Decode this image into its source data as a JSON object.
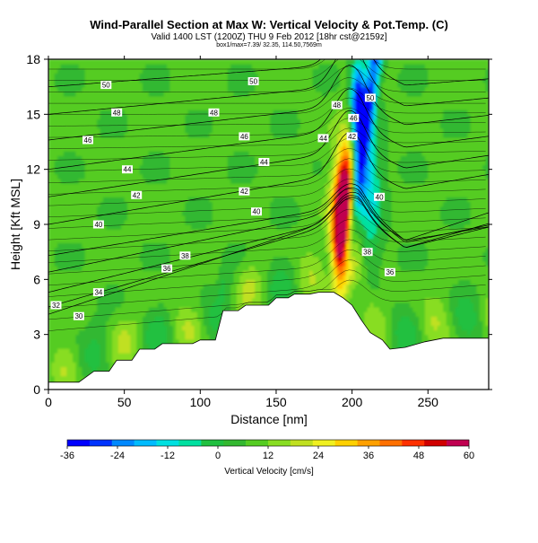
{
  "titles": {
    "main": "Wind-Parallel Section at Max W: Vertical Velocity & Pot.Temp. (C)",
    "valid": "Valid 1400 LST (1200Z) THU 9 Feb 2012 [18hr cst@2159z]",
    "sub": "box1/max=7.39/ 32.35, 114.50,7569m"
  },
  "chart_data": {
    "type": "heatmap",
    "xlabel": "Distance [nm]",
    "ylabel": "Height [Kft MSL]",
    "xlim": [
      0,
      290
    ],
    "ylim": [
      0,
      18
    ],
    "x_ticks": [
      0,
      50,
      100,
      150,
      200,
      250
    ],
    "y_ticks": [
      0,
      3,
      6,
      9,
      12,
      15,
      18
    ],
    "colorbar": {
      "label": "Vertical Velocity [cm/s]",
      "ticks": [
        -36,
        -24,
        -12,
        0,
        12,
        24,
        36,
        48,
        60
      ],
      "range": [
        -36,
        60
      ],
      "colors": [
        "#0000ff",
        "#0033ff",
        "#0088ff",
        "#00bbff",
        "#00e0e0",
        "#00e0a0",
        "#20c040",
        "#33b830",
        "#55cc22",
        "#88dd22",
        "#c0e020",
        "#f0f020",
        "#ffd000",
        "#ffa000",
        "#ff7000",
        "#ff3000",
        "#d00000",
        "#c00050"
      ]
    },
    "terrain_kft": [
      {
        "x": 0,
        "h": 0.4
      },
      {
        "x": 20,
        "h": 0.4
      },
      {
        "x": 30,
        "h": 1.0
      },
      {
        "x": 40,
        "h": 1.0
      },
      {
        "x": 45,
        "h": 1.6
      },
      {
        "x": 55,
        "h": 1.6
      },
      {
        "x": 60,
        "h": 2.2
      },
      {
        "x": 70,
        "h": 2.2
      },
      {
        "x": 75,
        "h": 2.5
      },
      {
        "x": 95,
        "h": 2.5
      },
      {
        "x": 100,
        "h": 2.7
      },
      {
        "x": 110,
        "h": 2.7
      },
      {
        "x": 115,
        "h": 4.3
      },
      {
        "x": 125,
        "h": 4.3
      },
      {
        "x": 130,
        "h": 4.6
      },
      {
        "x": 145,
        "h": 4.6
      },
      {
        "x": 150,
        "h": 5.0
      },
      {
        "x": 158,
        "h": 5.0
      },
      {
        "x": 162,
        "h": 5.2
      },
      {
        "x": 172,
        "h": 5.2
      },
      {
        "x": 178,
        "h": 5.3
      },
      {
        "x": 188,
        "h": 5.3
      },
      {
        "x": 194,
        "h": 5.0
      },
      {
        "x": 200,
        "h": 4.6
      },
      {
        "x": 206,
        "h": 3.8
      },
      {
        "x": 212,
        "h": 3.1
      },
      {
        "x": 220,
        "h": 2.7
      },
      {
        "x": 225,
        "h": 2.2
      },
      {
        "x": 235,
        "h": 2.3
      },
      {
        "x": 248,
        "h": 2.6
      },
      {
        "x": 260,
        "h": 2.8
      },
      {
        "x": 290,
        "h": 2.8
      }
    ],
    "isentropes": [
      {
        "theta": 30,
        "left_h": 4.1,
        "label_x": 20
      },
      {
        "theta": 32,
        "left_h": 4.5,
        "label_x": 5
      },
      {
        "theta": 34,
        "left_h": 5.3,
        "label_x": 33
      },
      {
        "theta": 36,
        "left_h": 6.4,
        "label_x": 78
      },
      {
        "theta": 38,
        "left_h": 7.3,
        "label_x": 90
      },
      {
        "theta": 40,
        "left_h": 9.0,
        "label_x": 33
      },
      {
        "theta": 42,
        "left_h": 10.5,
        "label_x": 58
      },
      {
        "theta": 44,
        "left_h": 12.0,
        "label_x": 52
      },
      {
        "theta": 46,
        "left_h": 13.6,
        "label_x": 26
      },
      {
        "theta": 48,
        "left_h": 15.0,
        "label_x": 45
      },
      {
        "theta": 50,
        "left_h": 16.5,
        "label_x": 38
      }
    ],
    "contour_labels": [
      {
        "text": "50",
        "x": 38,
        "y": 16.6
      },
      {
        "text": "50",
        "x": 135,
        "y": 16.8
      },
      {
        "text": "50",
        "x": 212,
        "y": 15.9
      },
      {
        "text": "48",
        "x": 45,
        "y": 15.1
      },
      {
        "text": "48",
        "x": 109,
        "y": 15.1
      },
      {
        "text": "48",
        "x": 190,
        "y": 15.5
      },
      {
        "text": "46",
        "x": 26,
        "y": 13.6
      },
      {
        "text": "46",
        "x": 129,
        "y": 13.8
      },
      {
        "text": "46",
        "x": 201,
        "y": 14.8
      },
      {
        "text": "44",
        "x": 52,
        "y": 12.0
      },
      {
        "text": "44",
        "x": 142,
        "y": 12.4
      },
      {
        "text": "44",
        "x": 181,
        "y": 13.7
      },
      {
        "text": "42",
        "x": 58,
        "y": 10.6
      },
      {
        "text": "42",
        "x": 129,
        "y": 10.8
      },
      {
        "text": "42",
        "x": 200,
        "y": 13.8
      },
      {
        "text": "40",
        "x": 33,
        "y": 9.0
      },
      {
        "text": "40",
        "x": 137,
        "y": 9.7
      },
      {
        "text": "40",
        "x": 218,
        "y": 10.5
      },
      {
        "text": "38",
        "x": 90,
        "y": 7.3
      },
      {
        "text": "38",
        "x": 210,
        "y": 7.5
      },
      {
        "text": "36",
        "x": 78,
        "y": 6.6
      },
      {
        "text": "36",
        "x": 225,
        "y": 6.4
      },
      {
        "text": "34",
        "x": 33,
        "y": 5.3
      },
      {
        "text": "32",
        "x": 5,
        "y": 4.6
      },
      {
        "text": "30",
        "x": 20,
        "y": 4.0
      }
    ],
    "velocity_features": [
      {
        "name": "updraft-core",
        "x": 196,
        "y": 9.0,
        "rx": 7,
        "ry": 2.2,
        "w": 60
      },
      {
        "name": "updraft-mid",
        "x": 196,
        "y": 9.5,
        "rx": 10,
        "ry": 3.5,
        "w": 36
      },
      {
        "name": "downdraft-core",
        "x": 204,
        "y": 15.5,
        "rx": 5,
        "ry": 2.5,
        "w": -36
      },
      {
        "name": "downdraft-band",
        "x": 212,
        "y": 10.5,
        "rx": 8,
        "ry": 3.5,
        "w": -12
      }
    ]
  }
}
